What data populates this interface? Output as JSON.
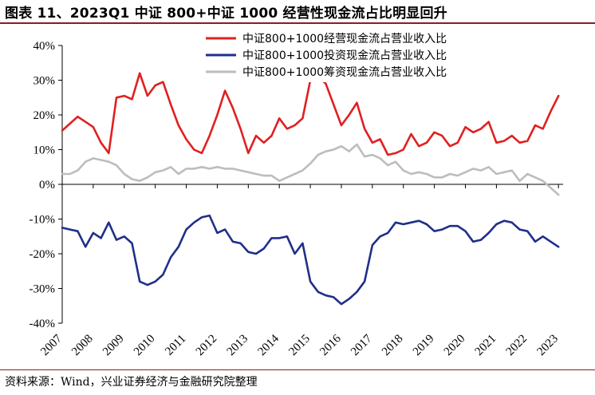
{
  "header": {
    "title": "图表 11、2023Q1 中证 800+中证 1000 经营性现金流占比明显回升"
  },
  "footer": {
    "source": "资料来源：Wind，兴业证券经济与金融研究院整理"
  },
  "chart_data": {
    "type": "line",
    "title": "图表 11、2023Q1 中证 800+中证 1000 经营性现金流占比明显回升",
    "xlabel": "",
    "ylabel": "",
    "xlim": [
      2007,
      2023.15
    ],
    "ylim": [
      -0.4,
      0.4
    ],
    "grid": false,
    "legend_position": "top-center",
    "x_ticks": [
      "2007",
      "2008",
      "2009",
      "2010",
      "2011",
      "2012",
      "2013",
      "2014",
      "2015",
      "2016",
      "2017",
      "2018",
      "2019",
      "2020",
      "2021",
      "2022",
      "2023"
    ],
    "y_ticks": [
      "40%",
      "30%",
      "20%",
      "10%",
      "0%",
      "-10%",
      "-20%",
      "-30%",
      "-40%"
    ],
    "y_tick_values": [
      0.4,
      0.3,
      0.2,
      0.1,
      0.0,
      -0.1,
      -0.2,
      -0.3,
      -0.4
    ],
    "series": [
      {
        "name": "中证800+1000经营现金流占营业收入比",
        "color": "#e02020",
        "x": [
          2007.0,
          2007.25,
          2007.5,
          2007.75,
          2008.0,
          2008.25,
          2008.5,
          2008.75,
          2009.0,
          2009.25,
          2009.5,
          2009.75,
          2010.0,
          2010.25,
          2010.5,
          2010.75,
          2011.0,
          2011.25,
          2011.5,
          2011.75,
          2012.0,
          2012.25,
          2012.5,
          2012.75,
          2013.0,
          2013.25,
          2013.5,
          2013.75,
          2014.0,
          2014.25,
          2014.5,
          2014.75,
          2015.0,
          2015.25,
          2015.5,
          2015.75,
          2016.0,
          2016.25,
          2016.5,
          2016.75,
          2017.0,
          2017.25,
          2017.5,
          2017.75,
          2018.0,
          2018.25,
          2018.5,
          2018.75,
          2019.0,
          2019.25,
          2019.5,
          2019.75,
          2020.0,
          2020.25,
          2020.5,
          2020.75,
          2021.0,
          2021.25,
          2021.5,
          2021.75,
          2022.0,
          2022.25,
          2022.5,
          2022.75,
          2023.0
        ],
        "values": [
          0.155,
          0.175,
          0.195,
          0.18,
          0.165,
          0.12,
          0.09,
          0.25,
          0.255,
          0.245,
          0.32,
          0.255,
          0.285,
          0.295,
          0.23,
          0.17,
          0.13,
          0.1,
          0.09,
          0.14,
          0.2,
          0.27,
          0.22,
          0.16,
          0.09,
          0.14,
          0.12,
          0.14,
          0.19,
          0.16,
          0.17,
          0.19,
          0.3,
          0.31,
          0.29,
          0.23,
          0.17,
          0.2,
          0.235,
          0.16,
          0.12,
          0.13,
          0.085,
          0.09,
          0.1,
          0.145,
          0.11,
          0.12,
          0.15,
          0.14,
          0.11,
          0.12,
          0.165,
          0.15,
          0.16,
          0.18,
          0.12,
          0.125,
          0.14,
          0.12,
          0.125,
          0.17,
          0.16,
          0.21,
          0.255
        ]
      },
      {
        "name": "中证800+1000投资现金流占营业收入比",
        "color": "#1f2f8a",
        "x": [
          2007.0,
          2007.25,
          2007.5,
          2007.75,
          2008.0,
          2008.25,
          2008.5,
          2008.75,
          2009.0,
          2009.25,
          2009.5,
          2009.75,
          2010.0,
          2010.25,
          2010.5,
          2010.75,
          2011.0,
          2011.25,
          2011.5,
          2011.75,
          2012.0,
          2012.25,
          2012.5,
          2012.75,
          2013.0,
          2013.25,
          2013.5,
          2013.75,
          2014.0,
          2014.25,
          2014.5,
          2014.75,
          2015.0,
          2015.25,
          2015.5,
          2015.75,
          2016.0,
          2016.25,
          2016.5,
          2016.75,
          2017.0,
          2017.25,
          2017.5,
          2017.75,
          2018.0,
          2018.25,
          2018.5,
          2018.75,
          2019.0,
          2019.25,
          2019.5,
          2019.75,
          2020.0,
          2020.25,
          2020.5,
          2020.75,
          2021.0,
          2021.25,
          2021.5,
          2021.75,
          2022.0,
          2022.25,
          2022.5,
          2022.75,
          2023.0
        ],
        "values": [
          -0.125,
          -0.13,
          -0.135,
          -0.18,
          -0.14,
          -0.155,
          -0.11,
          -0.16,
          -0.15,
          -0.17,
          -0.28,
          -0.29,
          -0.28,
          -0.26,
          -0.21,
          -0.18,
          -0.13,
          -0.11,
          -0.095,
          -0.09,
          -0.14,
          -0.13,
          -0.165,
          -0.17,
          -0.195,
          -0.2,
          -0.185,
          -0.155,
          -0.155,
          -0.15,
          -0.2,
          -0.17,
          -0.28,
          -0.31,
          -0.32,
          -0.325,
          -0.345,
          -0.33,
          -0.31,
          -0.28,
          -0.175,
          -0.15,
          -0.14,
          -0.11,
          -0.115,
          -0.11,
          -0.105,
          -0.115,
          -0.135,
          -0.13,
          -0.12,
          -0.12,
          -0.135,
          -0.165,
          -0.16,
          -0.14,
          -0.115,
          -0.105,
          -0.11,
          -0.13,
          -0.135,
          -0.165,
          -0.15,
          -0.165,
          -0.18
        ]
      },
      {
        "name": "中证800+1000筹资现金流占营业收入比",
        "color": "#bdbdbd",
        "x": [
          2007.0,
          2007.25,
          2007.5,
          2007.75,
          2008.0,
          2008.25,
          2008.5,
          2008.75,
          2009.0,
          2009.25,
          2009.5,
          2009.75,
          2010.0,
          2010.25,
          2010.5,
          2010.75,
          2011.0,
          2011.25,
          2011.5,
          2011.75,
          2012.0,
          2012.25,
          2012.5,
          2012.75,
          2013.0,
          2013.25,
          2013.5,
          2013.75,
          2014.0,
          2014.25,
          2014.5,
          2014.75,
          2015.0,
          2015.25,
          2015.5,
          2015.75,
          2016.0,
          2016.25,
          2016.5,
          2016.75,
          2017.0,
          2017.25,
          2017.5,
          2017.75,
          2018.0,
          2018.25,
          2018.5,
          2018.75,
          2019.0,
          2019.25,
          2019.5,
          2019.75,
          2020.0,
          2020.25,
          2020.5,
          2020.75,
          2021.0,
          2021.25,
          2021.5,
          2021.75,
          2022.0,
          2022.25,
          2022.5,
          2022.75,
          2023.0
        ],
        "values": [
          0.03,
          0.03,
          0.04,
          0.065,
          0.075,
          0.07,
          0.065,
          0.055,
          0.03,
          0.015,
          0.01,
          0.02,
          0.035,
          0.04,
          0.05,
          0.03,
          0.045,
          0.045,
          0.05,
          0.045,
          0.05,
          0.045,
          0.045,
          0.04,
          0.035,
          0.03,
          0.025,
          0.025,
          0.01,
          0.02,
          0.03,
          0.04,
          0.06,
          0.085,
          0.095,
          0.1,
          0.11,
          0.095,
          0.115,
          0.08,
          0.085,
          0.075,
          0.055,
          0.065,
          0.04,
          0.03,
          0.035,
          0.03,
          0.02,
          0.02,
          0.03,
          0.025,
          0.035,
          0.045,
          0.04,
          0.05,
          0.03,
          0.035,
          0.04,
          0.01,
          0.03,
          0.02,
          0.01,
          -0.01,
          -0.03
        ]
      }
    ]
  }
}
